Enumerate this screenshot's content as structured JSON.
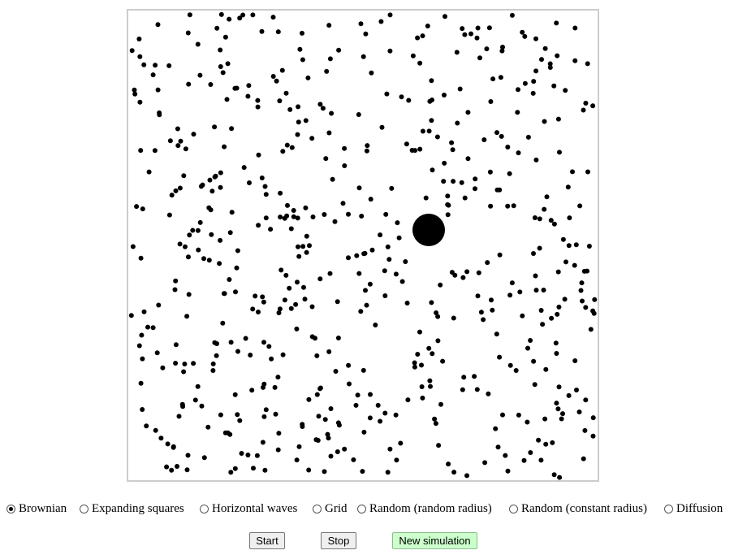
{
  "simulation": {
    "modes": [
      {
        "label": "Brownian",
        "checked": true
      },
      {
        "label": "Expanding squares",
        "checked": false
      },
      {
        "label": "Horizontal waves",
        "checked": false
      },
      {
        "label": "Grid",
        "checked": false
      },
      {
        "label": "Random (random radius)",
        "checked": false
      },
      {
        "label": "Random (constant radius)",
        "checked": false
      },
      {
        "label": "Diffusion",
        "checked": false
      }
    ],
    "buttons": {
      "start": "Start",
      "stop": "Stop",
      "new_simulation": "New simulation"
    },
    "colors": {
      "particle": "#000000",
      "canvas_border": "#cccccc",
      "new_simulation_bg": "#ccffcc"
    }
  }
}
